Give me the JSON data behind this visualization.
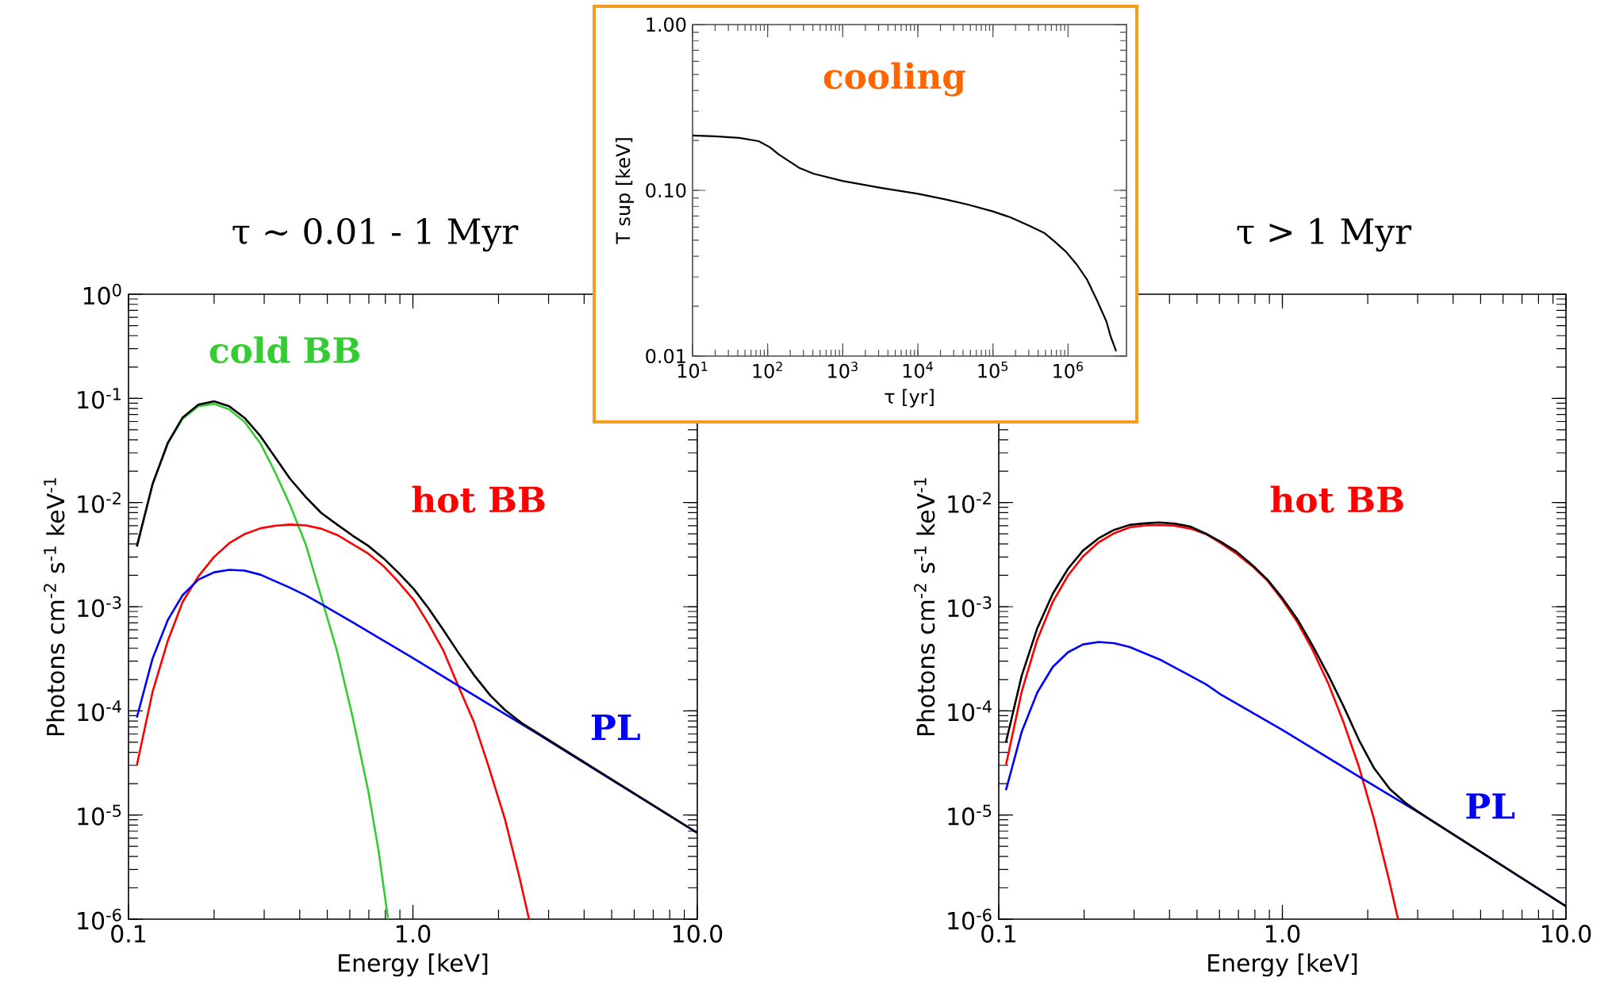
{
  "chart_data": [
    {
      "type": "line",
      "title": "τ ~ 0.01 - 1 Myr",
      "xlabel": "Energy  [keV]",
      "ylabel": "Photons cm$^{-2}$ s$^{-1}$ keV$^{-1}$",
      "log": "xy",
      "xlim": [
        0.1,
        10
      ],
      "ylim": [
        1e-06,
        1
      ],
      "xticks": [
        0.1,
        {
          "value": 1,
          "label": "1.0"
        },
        {
          "value": 10,
          "label": "10.0"
        }
      ],
      "yticks": [
        {
          "value": 1e-06,
          "label": "10$^{-6}$"
        },
        {
          "value": 1e-05,
          "label": "10$^{-5}$"
        },
        {
          "value": 0.0001,
          "label": "10$^{-4}$"
        },
        {
          "value": 0.001,
          "label": "10$^{-3}$"
        },
        {
          "value": 0.01,
          "label": "10$^{-2}$"
        },
        {
          "value": 0.1,
          "label": "10$^{-1}$"
        },
        {
          "value": 1,
          "label": "10$^{0}$"
        }
      ],
      "series": [
        {
          "color": "#000000",
          "x": [
            0.107,
            0.1215,
            0.1375,
            0.155,
            0.176,
            0.2,
            0.226,
            0.256,
            0.291,
            0.37,
            0.421,
            0.476,
            0.541,
            0.612,
            0.696,
            0.788,
            0.886,
            1.007,
            1.132,
            1.282,
            1.446,
            1.637,
            1.874,
            2.107,
            2.41,
            2.755,
            10
          ],
          "values": [
            0.00378,
            0.015,
            0.0375,
            0.0656,
            0.0871,
            0.0938,
            0.084,
            0.065,
            0.0434,
            0.0169,
            0.0112,
            0.00795,
            0.00615,
            0.00484,
            0.00385,
            0.00292,
            0.00214,
            0.00148,
            0.000973,
            0.000593,
            0.000361,
            0.000222,
            0.00014,
            0.000102,
            7.66e-05,
            6.09e-05,
            6.74e-06
          ]
        },
        {
          "name": "cold BB",
          "color": "#33cc33",
          "x": [
            0.107,
            0.1215,
            0.1375,
            0.155,
            0.176,
            0.2,
            0.226,
            0.256,
            0.291,
            0.327,
            0.37,
            0.421,
            0.476,
            0.541,
            0.612,
            0.696,
            0.757,
            0.818
          ],
          "values": [
            0.00378,
            0.015,
            0.0369,
            0.0639,
            0.0841,
            0.0888,
            0.0785,
            0.0595,
            0.0369,
            0.0198,
            0.00946,
            0.00389,
            0.00124,
            0.000375,
            9.04e-05,
            1.73e-05,
            4.58e-06,
            1e-06
          ]
        },
        {
          "name": "hot BB",
          "color": "#ff0000",
          "x": [
            0.107,
            0.1215,
            0.1375,
            0.155,
            0.176,
            0.2,
            0.226,
            0.256,
            0.291,
            0.327,
            0.37,
            0.421,
            0.476,
            0.541,
            0.612,
            0.696,
            0.788,
            0.886,
            1.007,
            1.132,
            1.282,
            1.446,
            1.637,
            1.84,
            2.107,
            2.37,
            2.56
          ],
          "values": [
            3.01e-05,
            0.000152,
            0.000471,
            0.00111,
            0.00195,
            0.00301,
            0.00407,
            0.00498,
            0.00566,
            0.00598,
            0.00615,
            0.00603,
            0.00561,
            0.00489,
            0.004,
            0.00324,
            0.00246,
            0.00175,
            0.00116,
            0.000693,
            0.000375,
            0.000172,
            7.88e-05,
            3.01e-05,
            9.12e-06,
            2.52e-06,
            1e-06
          ]
        },
        {
          "name": "PL",
          "color": "#0000ff",
          "x": [
            0.107,
            0.1215,
            0.1375,
            0.155,
            0.176,
            0.2,
            0.226,
            0.256,
            0.291,
            0.37,
            0.421,
            0.476,
            0.612,
            1.007,
            1.456,
            2.755,
            10
          ],
          "values": [
            8.63e-05,
            0.000318,
            0.000747,
            0.00129,
            0.00182,
            0.00214,
            0.00226,
            0.00222,
            0.00203,
            0.00152,
            0.00128,
            0.00106,
            0.000713,
            0.000318,
            0.000172,
            5.98e-05,
            6.74e-06
          ]
        }
      ]
    },
    {
      "type": "line",
      "xlabel": "τ  [yr]",
      "ylabel": "T sup  [keV]",
      "log": "xy",
      "annotations": [
        "cooling"
      ],
      "xlim": [
        10,
        6000000
      ],
      "ylim": [
        0.01,
        1
      ],
      "xticks": [
        {
          "value": 10,
          "label": "10$^{1}$"
        },
        {
          "value": 100,
          "label": "10$^{2}$"
        },
        {
          "value": 1000,
          "label": "10$^{3}$"
        },
        {
          "value": 10000,
          "label": "10$^{4}$"
        },
        {
          "value": 100000,
          "label": "10$^{5}$"
        },
        {
          "value": 1000000,
          "label": "10$^{6}$"
        }
      ],
      "yticks": [
        0.01,
        {
          "value": 0.1,
          "label": "0.10"
        },
        {
          "value": 1,
          "label": "1.00"
        }
      ],
      "series": [
        {
          "color": "#000000",
          "x": [
            10,
            20,
            42,
            76,
            107,
            140,
            261,
            408,
            990,
            3210,
            10100,
            24500,
            46500,
            98400,
            168000,
            302000,
            489000,
            673000,
            948000,
            1310000,
            1800000,
            2430000,
            3240000,
            3720000,
            4370000
          ],
          "values": [
            0.214,
            0.212,
            0.207,
            0.198,
            0.182,
            0.165,
            0.137,
            0.126,
            0.114,
            0.1035,
            0.0953,
            0.0877,
            0.082,
            0.0748,
            0.0689,
            0.0613,
            0.0551,
            0.0488,
            0.0424,
            0.0356,
            0.0288,
            0.0217,
            0.0162,
            0.013,
            0.0107
          ]
        }
      ]
    },
    {
      "type": "line",
      "title": "τ > 1 Myr",
      "xlabel": "Energy  [keV]",
      "ylabel": "Photons cm$^{-2}$ s$^{-1}$ keV$^{-1}$",
      "log": "xy",
      "xlim": [
        0.1,
        10
      ],
      "ylim": [
        1e-06,
        1
      ],
      "xticks": [
        0.1,
        {
          "value": 1,
          "label": "1.0"
        },
        {
          "value": 10,
          "label": "10.0"
        }
      ],
      "yticks": [
        {
          "value": 1e-06,
          "label": "10$^{-6}$"
        },
        {
          "value": 1e-05,
          "label": "10$^{-5}$"
        },
        {
          "value": 0.0001,
          "label": "10$^{-4}$"
        },
        {
          "value": 0.001,
          "label": "10$^{-3}$"
        },
        {
          "value": 0.01,
          "label": "10$^{-2}$"
        },
        {
          "value": 0.1,
          "label": null
        },
        {
          "value": 1,
          "label": null
        }
      ],
      "series": [
        {
          "color": "#000000",
          "x": [
            0.106,
            0.1204,
            0.1367,
            0.155,
            0.1754,
            0.198,
            0.225,
            0.255,
            0.289,
            0.328,
            0.369,
            0.418,
            0.475,
            0.538,
            0.608,
            0.688,
            0.782,
            0.886,
            1.0,
            1.129,
            1.274,
            1.452,
            1.64,
            1.865,
            2.105,
            2.39,
            2.735,
            3.13,
            10
          ],
          "values": [
            4.98e-05,
            0.000216,
            0.000621,
            0.00133,
            0.00231,
            0.00345,
            0.00454,
            0.00546,
            0.0061,
            0.00632,
            0.00644,
            0.00626,
            0.00587,
            0.00502,
            0.00419,
            0.00339,
            0.00252,
            0.00182,
            0.00121,
            0.000759,
            0.00043,
            0.00022,
            0.000112,
            5.21e-05,
            2.82e-05,
            1.78e-05,
            1.29e-05,
            1e-05,
            1.33e-06
          ]
        },
        {
          "name": "hot BB",
          "color": "#ff0000",
          "x": [
            0.106,
            0.1204,
            0.1367,
            0.155,
            0.1754,
            0.198,
            0.225,
            0.255,
            0.289,
            0.328,
            0.369,
            0.418,
            0.475,
            0.538,
            0.608,
            0.688,
            0.782,
            0.886,
            1.0,
            1.129,
            1.274,
            1.452,
            1.64,
            1.865,
            2.105,
            2.375,
            2.558
          ],
          "values": [
            3.01e-05,
            0.000152,
            0.000484,
            0.00111,
            0.00199,
            0.00303,
            0.00415,
            0.00507,
            0.00577,
            0.00603,
            0.0061,
            0.00598,
            0.00561,
            0.00498,
            0.00407,
            0.00324,
            0.00246,
            0.00178,
            0.00116,
            0.000713,
            0.000392,
            0.000183,
            7.88e-05,
            2.87e-05,
            9.12e-06,
            2.41e-06,
            1e-06
          ]
        },
        {
          "name": "PL",
          "color": "#0000ff",
          "x": [
            0.106,
            0.1204,
            0.1367,
            0.155,
            0.1754,
            0.198,
            0.225,
            0.255,
            0.289,
            0.369,
            0.475,
            0.538,
            0.608,
            1.0,
            1.89,
            3.13,
            10
          ],
          "values": [
            1.73e-05,
            6.26e-05,
            0.00015,
            0.000264,
            0.000365,
            0.000434,
            0.000459,
            0.000446,
            0.000411,
            0.000312,
            0.000216,
            0.00018,
            0.000143,
            6.56e-05,
            2.28e-05,
            1e-05,
            1.33e-06
          ]
        }
      ]
    }
  ]
}
